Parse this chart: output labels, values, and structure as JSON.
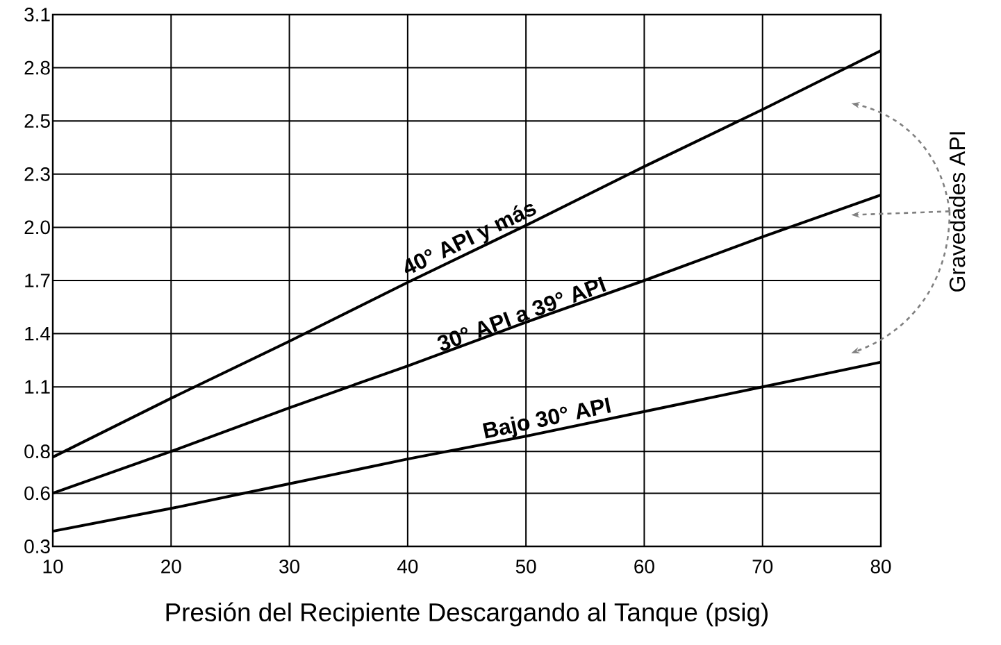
{
  "chart_data": {
    "type": "line",
    "xlabel": "Presión del Recipiente Descargando al Tanque (psig)",
    "x": [
      10,
      20,
      30,
      40,
      50,
      60,
      70,
      80
    ],
    "series": [
      {
        "name": "40° API y más",
        "color": "#000000",
        "values": [
          0.77,
          1.08,
          1.38,
          1.69,
          1.99,
          2.3,
          2.6,
          2.91
        ]
      },
      {
        "name": "30° API a 39° API",
        "color": "#000000",
        "values": [
          0.58,
          0.8,
          1.03,
          1.25,
          1.48,
          1.7,
          1.93,
          2.15
        ]
      },
      {
        "name": "Bajo 30° API",
        "color": "#000000",
        "values": [
          0.38,
          0.5,
          0.63,
          0.76,
          0.88,
          1.01,
          1.14,
          1.27
        ]
      }
    ],
    "xlim": [
      10,
      80
    ],
    "xticks": [
      10,
      20,
      30,
      40,
      50,
      60,
      70,
      80
    ],
    "ylim": [
      0.3,
      3.1
    ],
    "yticks": [
      {
        "value": 0.3,
        "label": "0.3"
      },
      {
        "value": 0.58,
        "label": "0.6"
      },
      0.8,
      {
        "value": 1.14,
        "label": "1.1"
      },
      {
        "value": 1.42,
        "label": "1.4"
      },
      {
        "value": 1.7,
        "label": "1.7"
      },
      {
        "value": 1.98,
        "label": "2.0"
      },
      {
        "value": 2.26,
        "label": "2.3"
      },
      {
        "value": 2.54,
        "label": "2.5"
      },
      {
        "value": 2.82,
        "label": "2.8"
      },
      {
        "value": 3.1,
        "label": "3.1"
      }
    ],
    "grid": true,
    "marker": "none",
    "line_style": "solid",
    "annotations": [
      "Gravedades API"
    ]
  }
}
